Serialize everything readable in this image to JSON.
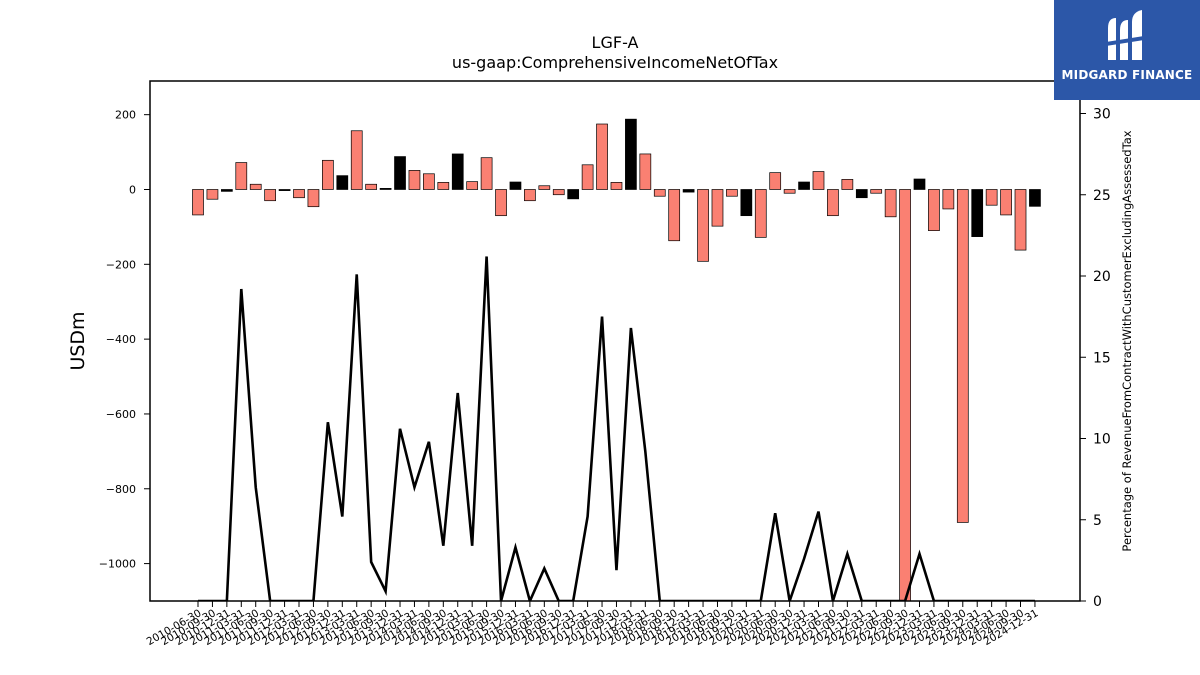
{
  "chart_data": {
    "type": "bar",
    "title": "LGF-A",
    "subtitle": "us-gaap:ComprehensiveIncomeNetOfTax",
    "ylabel": "USDm",
    "y2label": "Percentage of RevenueFromContractWithCustomerExcludingAssessedTax",
    "ylim": [
      -1100,
      290
    ],
    "y2lim": [
      0,
      32
    ],
    "yticks": [
      -1000,
      -800,
      -600,
      -400,
      -200,
      0,
      200
    ],
    "y2ticks": [
      0,
      5,
      10,
      15,
      20,
      25,
      30
    ],
    "grid": false,
    "colors": {
      "positive": "#000000",
      "negative": "#fa8072"
    },
    "categories": [
      "2010-06-30",
      "2010-09-30",
      "2010-12-31",
      "2011-03-31",
      "2011-06-30",
      "2011-09-30",
      "2011-12-31",
      "2012-03-31",
      "2012-06-30",
      "2012-09-30",
      "2012-12-31",
      "2013-03-31",
      "2013-06-30",
      "2013-09-30",
      "2013-12-31",
      "2014-03-31",
      "2014-06-30",
      "2014-09-30",
      "2014-12-31",
      "2015-03-31",
      "2015-06-30",
      "2015-09-30",
      "2015-12-31",
      "2016-03-31",
      "2016-06-30",
      "2016-09-30",
      "2016-12-31",
      "2017-03-31",
      "2017-06-30",
      "2017-09-30",
      "2017-12-31",
      "2018-03-31",
      "2018-06-30",
      "2018-09-30",
      "2018-12-31",
      "2019-03-31",
      "2019-06-30",
      "2019-09-30",
      "2019-12-31",
      "2020-03-31",
      "2020-06-30",
      "2020-09-30",
      "2020-12-31",
      "2021-03-31",
      "2021-06-30",
      "2021-09-30",
      "2021-12-31",
      "2022-03-31",
      "2022-06-30",
      "2022-09-30",
      "2022-12-31",
      "2023-03-31",
      "2023-06-30",
      "2023-09-30",
      "2023-12-31",
      "2024-03-31",
      "2024-06-30",
      "2024-09-30",
      "2024-12-31"
    ],
    "values": [
      -68,
      -26,
      -5,
      72,
      14,
      -30,
      -3,
      -22,
      -46,
      78,
      37,
      157,
      14,
      3,
      88,
      51,
      42,
      19,
      95,
      21,
      85,
      -70,
      20,
      -30,
      10,
      -14,
      -25,
      66,
      175,
      19,
      188,
      95,
      -18,
      -137,
      -7,
      -192,
      -98,
      -18,
      -70,
      -128,
      45,
      -10,
      20,
      48,
      -70,
      27,
      -22,
      -10,
      -73,
      -1100,
      28,
      -110,
      -52,
      -890,
      -126,
      -42,
      -68,
      -162,
      -45
    ],
    "bar_colors": [
      "negative",
      "negative",
      "positive",
      "negative",
      "negative",
      "negative",
      "positive",
      "negative",
      "negative",
      "negative",
      "positive",
      "negative",
      "negative",
      "positive",
      "positive",
      "negative",
      "negative",
      "negative",
      "positive",
      "negative",
      "negative",
      "negative",
      "positive",
      "negative",
      "negative",
      "negative",
      "positive",
      "negative",
      "negative",
      "negative",
      "positive",
      "negative",
      "negative",
      "negative",
      "positive",
      "negative",
      "negative",
      "negative",
      "positive",
      "negative",
      "negative",
      "negative",
      "positive",
      "negative",
      "negative",
      "negative",
      "positive",
      "negative",
      "negative",
      "negative",
      "positive",
      "negative",
      "negative",
      "negative",
      "positive",
      "negative",
      "negative",
      "negative",
      "positive"
    ],
    "line_series": {
      "axis": "right",
      "values": [
        0,
        0,
        0,
        19.2,
        7.0,
        0,
        0,
        0,
        0,
        11.0,
        5.2,
        20.1,
        2.4,
        0.6,
        10.6,
        7.0,
        9.8,
        3.4,
        12.8,
        3.4,
        21.2,
        0,
        3.3,
        0,
        2.0,
        0,
        0,
        5.2,
        17.5,
        1.9,
        16.8,
        9.2,
        0,
        0,
        0,
        0,
        0,
        0,
        0,
        0,
        5.4,
        0,
        2.6,
        5.5,
        0,
        2.9,
        0,
        0,
        0,
        0,
        2.9,
        0,
        0,
        0,
        0,
        0,
        0,
        0,
        0
      ]
    }
  },
  "logo": {
    "text": "MIDGARD FINANCE"
  }
}
